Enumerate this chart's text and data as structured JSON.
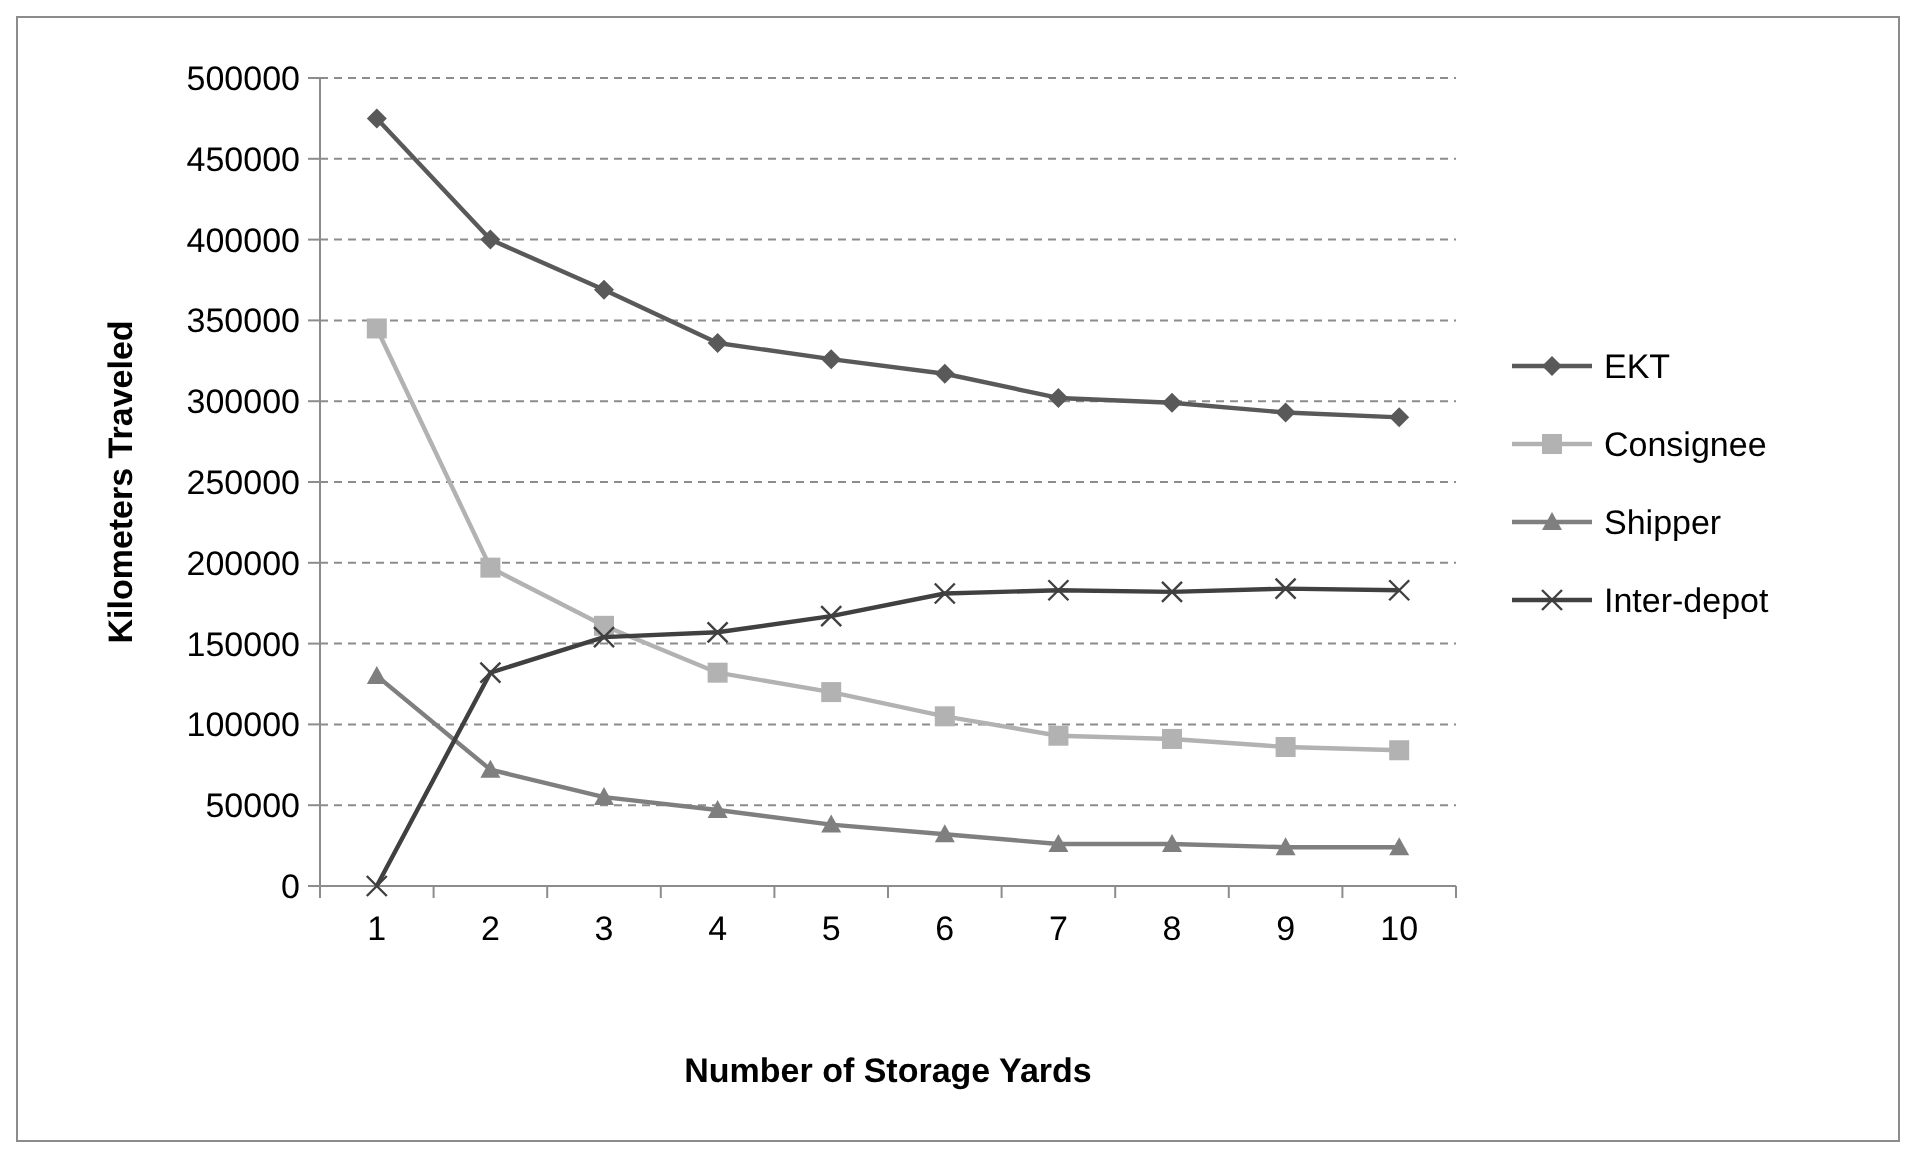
{
  "chart_data": {
    "type": "line",
    "xlabel": "Number of Storage Yards",
    "ylabel": "Kilometers Traveled",
    "categories": [
      "1",
      "2",
      "3",
      "4",
      "5",
      "6",
      "7",
      "8",
      "9",
      "10"
    ],
    "ylim": [
      0,
      500000
    ],
    "yticks": [
      0,
      50000,
      100000,
      150000,
      200000,
      250000,
      300000,
      350000,
      400000,
      450000,
      500000
    ],
    "grid": "y",
    "legend": "right",
    "line_style": "solid",
    "series": [
      {
        "name": "EKT",
        "color": "#595959",
        "marker": "diamond",
        "values": [
          475000,
          400000,
          369000,
          336000,
          326000,
          317000,
          302000,
          299000,
          293000,
          290000
        ]
      },
      {
        "name": "Consignee",
        "color": "#b2b2b2",
        "marker": "square",
        "values": [
          345000,
          197000,
          161000,
          132000,
          120000,
          105000,
          93000,
          91000,
          86000,
          84000
        ]
      },
      {
        "name": "Shipper",
        "color": "#7f7f7f",
        "marker": "triangle",
        "values": [
          130000,
          72000,
          55000,
          47000,
          38000,
          32000,
          26000,
          26000,
          24000,
          24000
        ]
      },
      {
        "name": "Inter-depot",
        "color": "#404040",
        "marker": "cross",
        "values": [
          0,
          132000,
          154000,
          157000,
          167000,
          181000,
          183000,
          182000,
          184000,
          183000
        ]
      }
    ]
  }
}
